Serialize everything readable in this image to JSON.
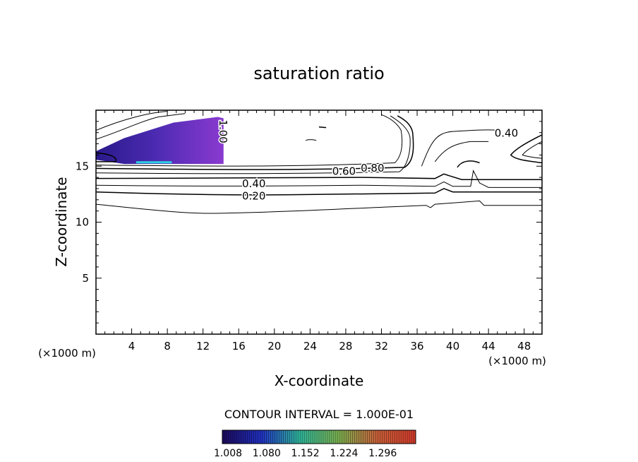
{
  "chart_data": {
    "type": "contour",
    "title": "saturation ratio",
    "xlabel": "X-coordinate",
    "ylabel": "Z-coordinate",
    "x_unit_label": "(×1000 m)",
    "xlim": [
      0,
      50
    ],
    "ylim": [
      0,
      20
    ],
    "x_ticks": [
      4,
      8,
      12,
      16,
      20,
      24,
      28,
      32,
      36,
      40,
      44,
      48
    ],
    "y_ticks": [
      5,
      10,
      15
    ],
    "grid": false,
    "contour_interval_text": "CONTOUR INTERVAL = 1.000E-01",
    "contour_labels": [
      {
        "text": "0.20",
        "x": 17.7,
        "z": 12.4
      },
      {
        "text": "0.40",
        "x": 17.7,
        "z": 13.5
      },
      {
        "text": "0.60",
        "x": 27.8,
        "z": 14.6
      },
      {
        "text": "0.80",
        "x": 31.0,
        "z": 14.9
      },
      {
        "text": "0.40",
        "x": 46.0,
        "z": 18.0
      },
      {
        "text": "1.00",
        "x": 14.3,
        "z": 18.1
      }
    ],
    "filled_region": {
      "x_range": [
        0,
        14.3
      ],
      "z_range": [
        15.2,
        19.4
      ],
      "min": 1.008,
      "max": 1.3
    },
    "colorbar": {
      "tick_labels": [
        "1.008",
        "1.080",
        "1.152",
        "1.224",
        "1.296"
      ],
      "colors": [
        "#1c0a5a",
        "#2030c0",
        "#2fb59a",
        "#c8a04a",
        "#d23a2a"
      ]
    }
  }
}
